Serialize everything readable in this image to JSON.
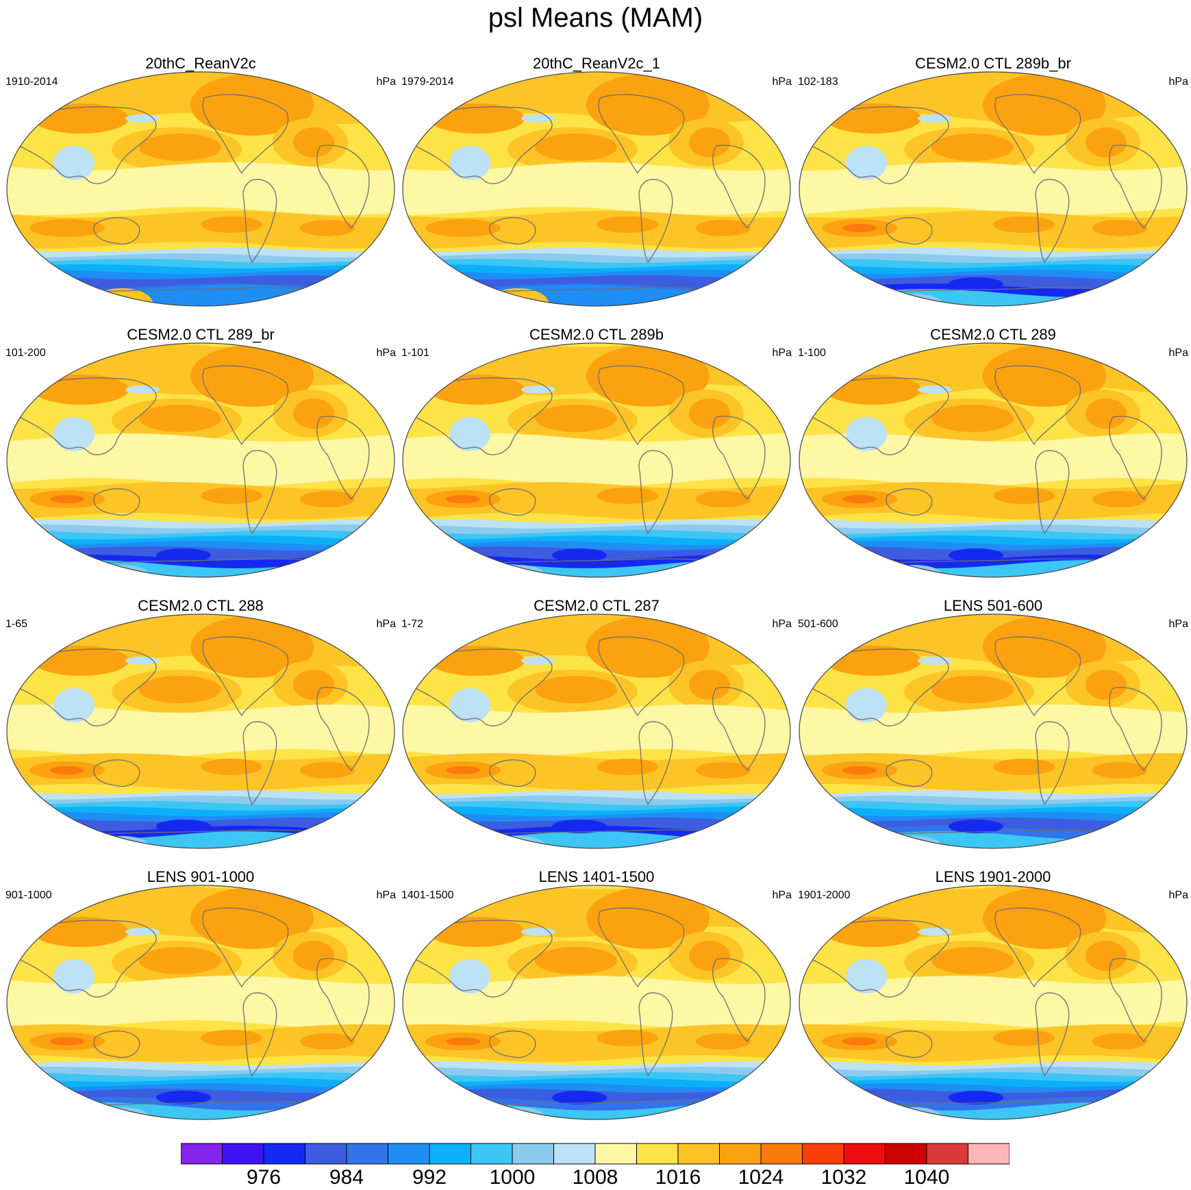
{
  "title": "psl Means (MAM)",
  "panels": [
    {
      "title": "20thC_ReanV2c",
      "left": "1910-2014",
      "right": "hPa",
      "variant": "rean"
    },
    {
      "title": "20thC_ReanV2c_1",
      "left": "1979-2014",
      "right": "hPa",
      "variant": "rean"
    },
    {
      "title": "CESM2.0 CTL 289b_br",
      "left": "102-183",
      "right": "hPa",
      "variant": "model"
    },
    {
      "title": "CESM2.0 CTL 289_br",
      "left": "101-200",
      "right": "hPa",
      "variant": "model"
    },
    {
      "title": "CESM2.0 CTL 289b",
      "left": "1-101",
      "right": "hPa",
      "variant": "model"
    },
    {
      "title": "CESM2.0 CTL 289",
      "left": "1-100",
      "right": "hPa",
      "variant": "model"
    },
    {
      "title": "CESM2.0 CTL 288",
      "left": "1-65",
      "right": "hPa",
      "variant": "model"
    },
    {
      "title": "CESM2.0 CTL 287",
      "left": "1-72",
      "right": "hPa",
      "variant": "model"
    },
    {
      "title": "LENS 501-600",
      "left": "501-600",
      "right": "hPa",
      "variant": "lens"
    },
    {
      "title": "LENS 901-1000",
      "left": "901-1000",
      "right": "hPa",
      "variant": "lens"
    },
    {
      "title": "LENS 1401-1500",
      "left": "1401-1500",
      "right": "hPa",
      "variant": "lens"
    },
    {
      "title": "LENS 1901-2000",
      "left": "1901-2000",
      "right": "hPa",
      "variant": "lens"
    }
  ],
  "colorbar": {
    "colors": [
      "#8424ec",
      "#3e13f4",
      "#1629f0",
      "#3d5de0",
      "#3273eb",
      "#1e8ef5",
      "#0cb0f9",
      "#3cc6f5",
      "#8ccbee",
      "#bde1f5",
      "#fef7a4",
      "#fde346",
      "#fdc426",
      "#fca20f",
      "#fa7a0c",
      "#fa3e0a",
      "#f00c0c",
      "#cc0303",
      "#dc3a3a",
      "#fdb5b5"
    ],
    "labels": [
      {
        "text": "976",
        "boundary": 2
      },
      {
        "text": "984",
        "boundary": 4
      },
      {
        "text": "992",
        "boundary": 6
      },
      {
        "text": "1000",
        "boundary": 8
      },
      {
        "text": "1008",
        "boundary": 10
      },
      {
        "text": "1016",
        "boundary": 12
      },
      {
        "text": "1024",
        "boundary": 14
      },
      {
        "text": "1032",
        "boundary": 16
      },
      {
        "text": "1040",
        "boundary": 18
      }
    ]
  }
}
